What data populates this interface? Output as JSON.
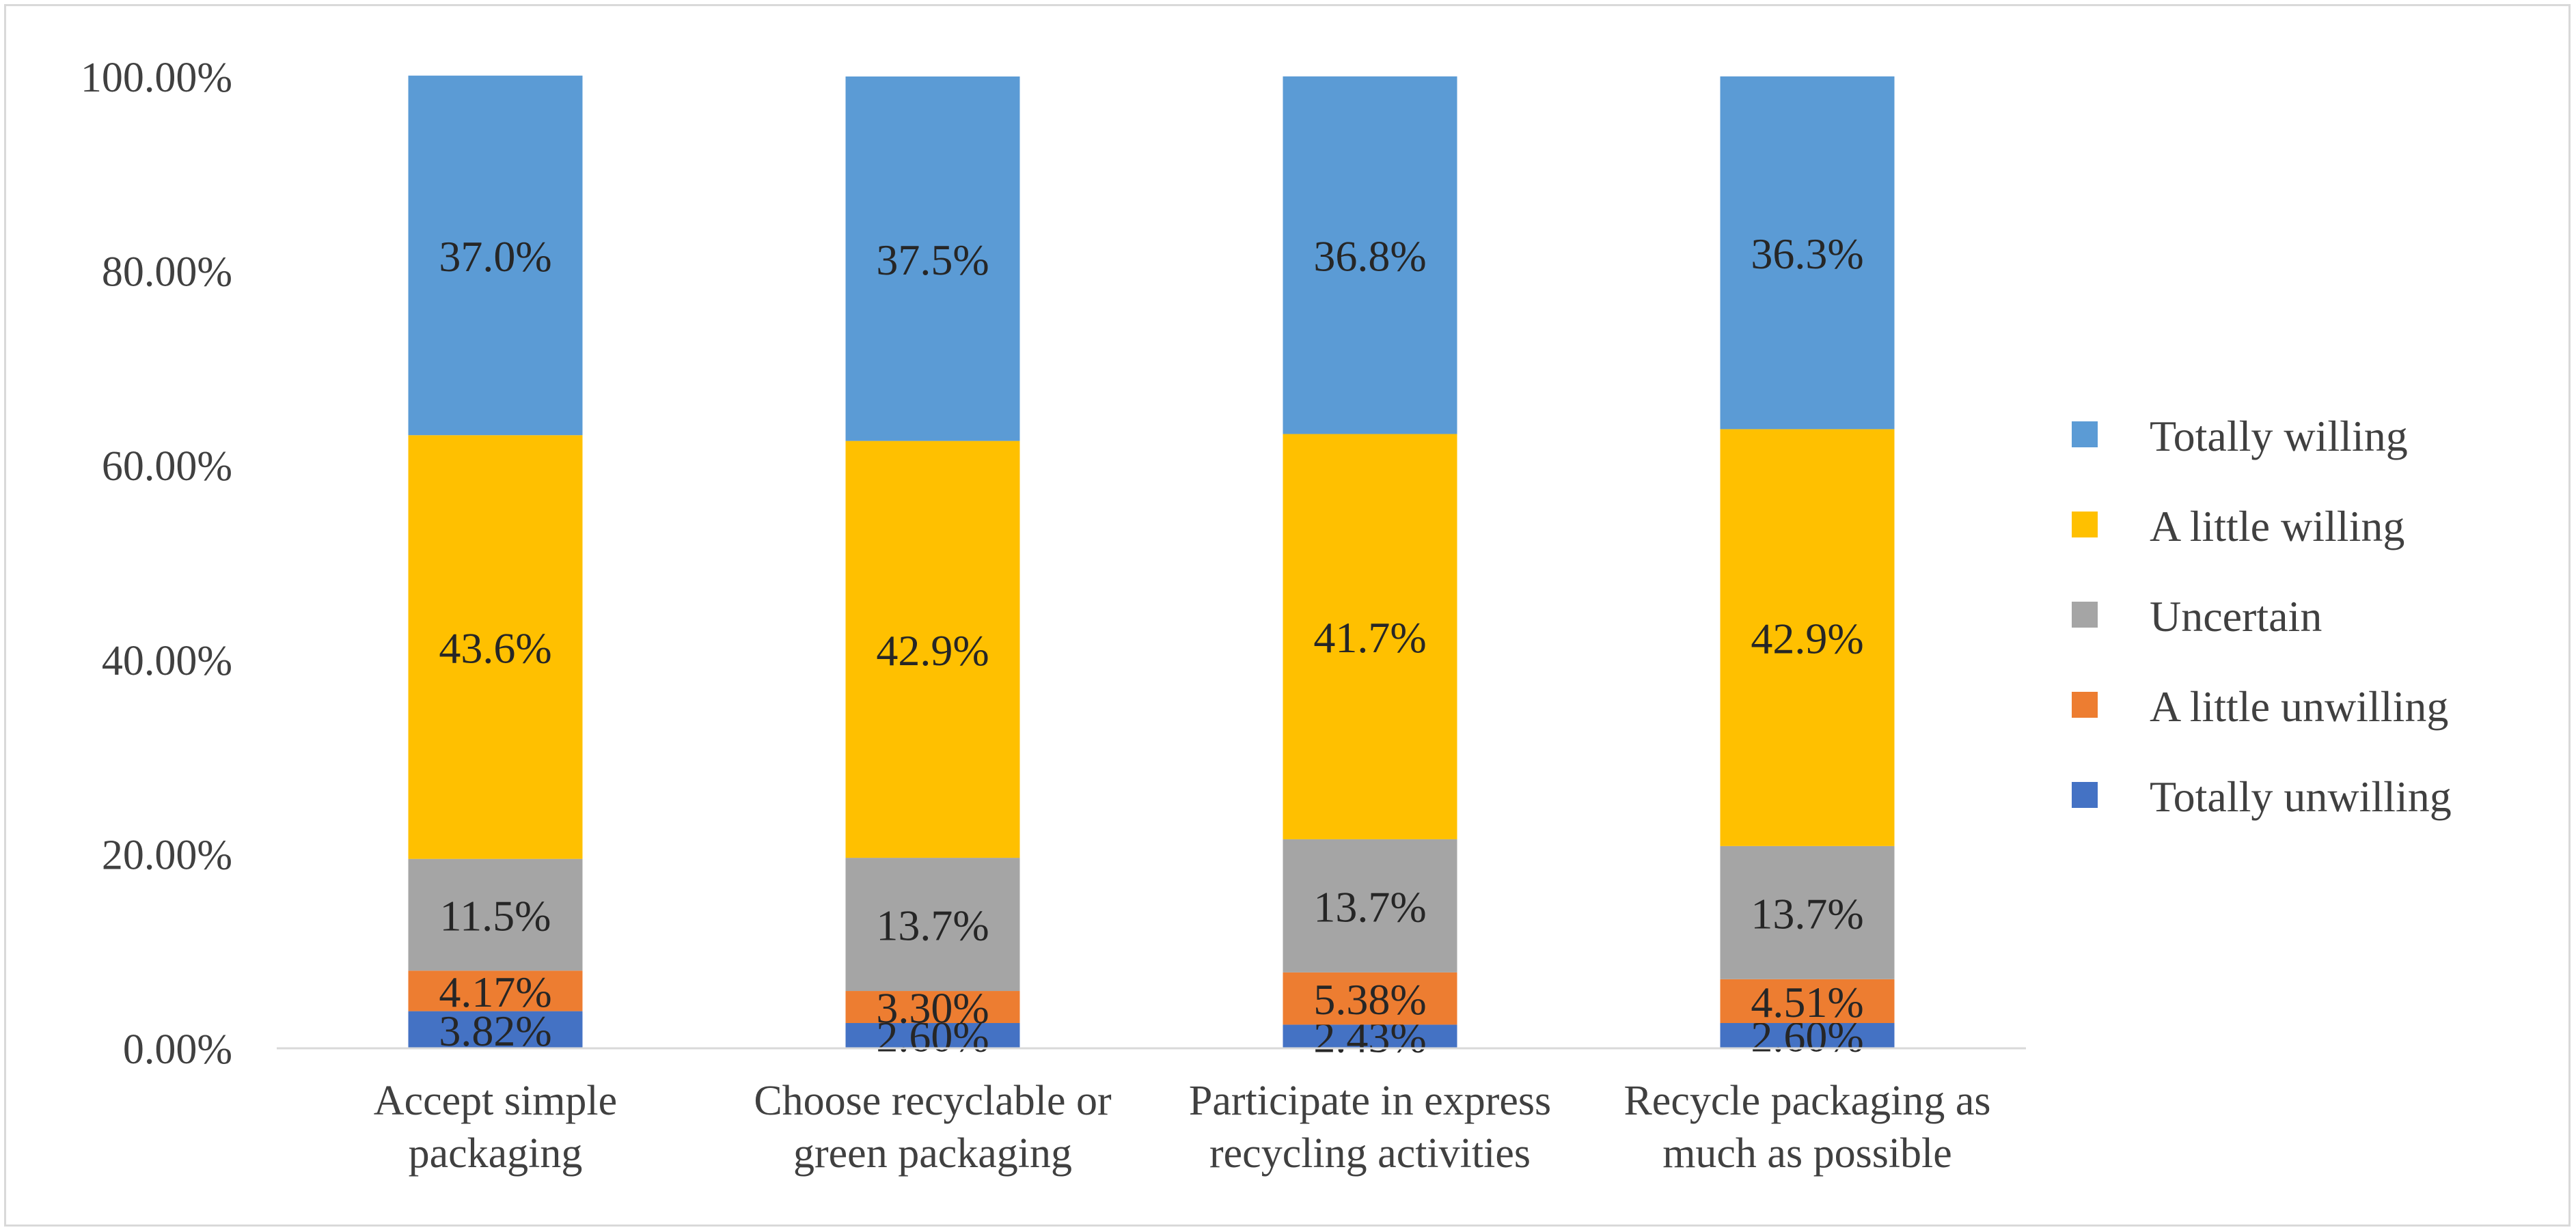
{
  "chart_data": {
    "type": "bar",
    "stacked": true,
    "categories": [
      [
        "Accept simple",
        "packaging"
      ],
      [
        "Choose recyclable or",
        "green packaging"
      ],
      [
        "Participate in express",
        "recycling activities"
      ],
      [
        "Recycle packaging as",
        "much as possible"
      ]
    ],
    "series": [
      {
        "name": "Totally unwilling",
        "color": "#4472c4",
        "values": [
          3.82,
          2.6,
          2.43,
          2.6
        ],
        "labels": [
          "3.82%",
          "2.60%",
          "2.43%",
          "2.60%"
        ]
      },
      {
        "name": "A little unwilling",
        "color": "#ed7d31",
        "values": [
          4.17,
          3.3,
          5.38,
          4.51
        ],
        "labels": [
          "4.17%",
          "3.30%",
          "5.38%",
          "4.51%"
        ]
      },
      {
        "name": "Uncertain",
        "color": "#a5a5a5",
        "values": [
          11.5,
          13.7,
          13.7,
          13.7
        ],
        "labels": [
          "11.5%",
          "13.7%",
          "13.7%",
          "13.7%"
        ]
      },
      {
        "name": "A little willing",
        "color": "#ffc000",
        "values": [
          43.6,
          42.9,
          41.7,
          42.9
        ],
        "labels": [
          "43.6%",
          "42.9%",
          "41.7%",
          "42.9%"
        ]
      },
      {
        "name": "Totally willing",
        "color": "#5b9bd5",
        "values": [
          37.0,
          37.5,
          36.8,
          36.3
        ],
        "labels": [
          "37.0%",
          "37.5%",
          "36.8%",
          "36.3%"
        ]
      }
    ],
    "y_ticks": [
      0,
      20,
      40,
      60,
      80,
      100
    ],
    "y_tick_labels": [
      "0.00%",
      "20.00%",
      "40.00%",
      "60.00%",
      "80.00%",
      "100.00%"
    ],
    "ylim": [
      0,
      100
    ],
    "title": "",
    "xlabel": "",
    "ylabel": "",
    "grid": false,
    "legend_position": "right",
    "legend_order": [
      "Totally willing",
      "A little willing",
      "Uncertain",
      "A little unwilling",
      "Totally unwilling"
    ]
  }
}
